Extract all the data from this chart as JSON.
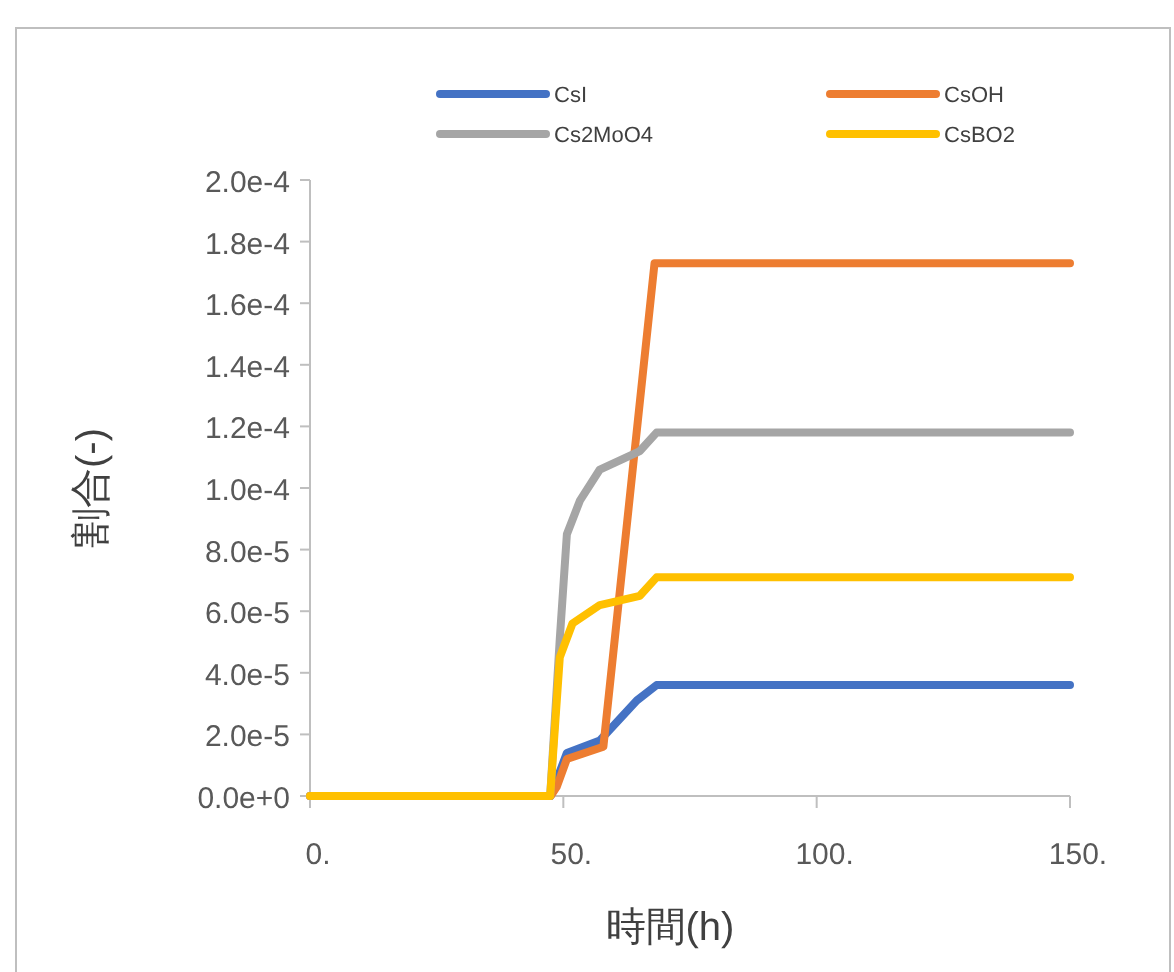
{
  "chart_data": {
    "type": "line",
    "xlabel": "時間(h)",
    "ylabel": "割合(-)",
    "legend": "top",
    "xlim": [
      0,
      150
    ],
    "ylim": [
      0,
      0.0002
    ],
    "xticks": [
      {
        "value": 0,
        "label": "0."
      },
      {
        "value": 50,
        "label": "50."
      },
      {
        "value": 100,
        "label": "100."
      },
      {
        "value": 150,
        "label": "150."
      }
    ],
    "yticks": [
      {
        "value": 0,
        "label": "0.0e+0"
      },
      {
        "value": 2e-05,
        "label": "2.0e-5"
      },
      {
        "value": 4e-05,
        "label": "4.0e-5"
      },
      {
        "value": 6e-05,
        "label": "6.0e-5"
      },
      {
        "value": 8e-05,
        "label": "8.0e-5"
      },
      {
        "value": 0.0001,
        "label": "1.0e-4"
      },
      {
        "value": 0.00012,
        "label": "1.2e-4"
      },
      {
        "value": 0.00014,
        "label": "1.4e-4"
      },
      {
        "value": 0.00016,
        "label": "1.6e-4"
      },
      {
        "value": 0.00018,
        "label": "1.8e-4"
      },
      {
        "value": 0.0002,
        "label": "2.0e-4"
      }
    ],
    "series": [
      {
        "name": "CsI",
        "color": "#4472c4",
        "x": [
          0,
          47.5,
          50.7,
          57.2,
          64.5,
          68.4,
          150
        ],
        "values": [
          0,
          0,
          1.4e-05,
          1.8e-05,
          3.1e-05,
          3.6e-05,
          3.6e-05
        ]
      },
      {
        "name": "CsOH",
        "color": "#ed7d31",
        "x": [
          0,
          47.5,
          48.7,
          50.7,
          57.9,
          68.0,
          150
        ],
        "values": [
          0,
          0,
          3e-06,
          1.2e-05,
          1.6e-05,
          0.000173,
          0.000173
        ]
      },
      {
        "name": "Cs2MoO4",
        "color": "#a5a5a5",
        "x": [
          0,
          47.4,
          49.3,
          50.7,
          53.3,
          57.2,
          65.1,
          68.4,
          150
        ],
        "values": [
          0,
          0,
          5.1e-05,
          8.5e-05,
          9.6e-05,
          0.000106,
          0.000112,
          0.000118,
          0.000118
        ]
      },
      {
        "name": "CsBO2",
        "color": "#ffc000",
        "x": [
          0,
          47.4,
          49.3,
          51.8,
          57.2,
          65.1,
          68.4,
          150
        ],
        "values": [
          0,
          0,
          4.5e-05,
          5.6e-05,
          6.2e-05,
          6.5e-05,
          7.1e-05,
          7.1e-05
        ]
      }
    ]
  }
}
